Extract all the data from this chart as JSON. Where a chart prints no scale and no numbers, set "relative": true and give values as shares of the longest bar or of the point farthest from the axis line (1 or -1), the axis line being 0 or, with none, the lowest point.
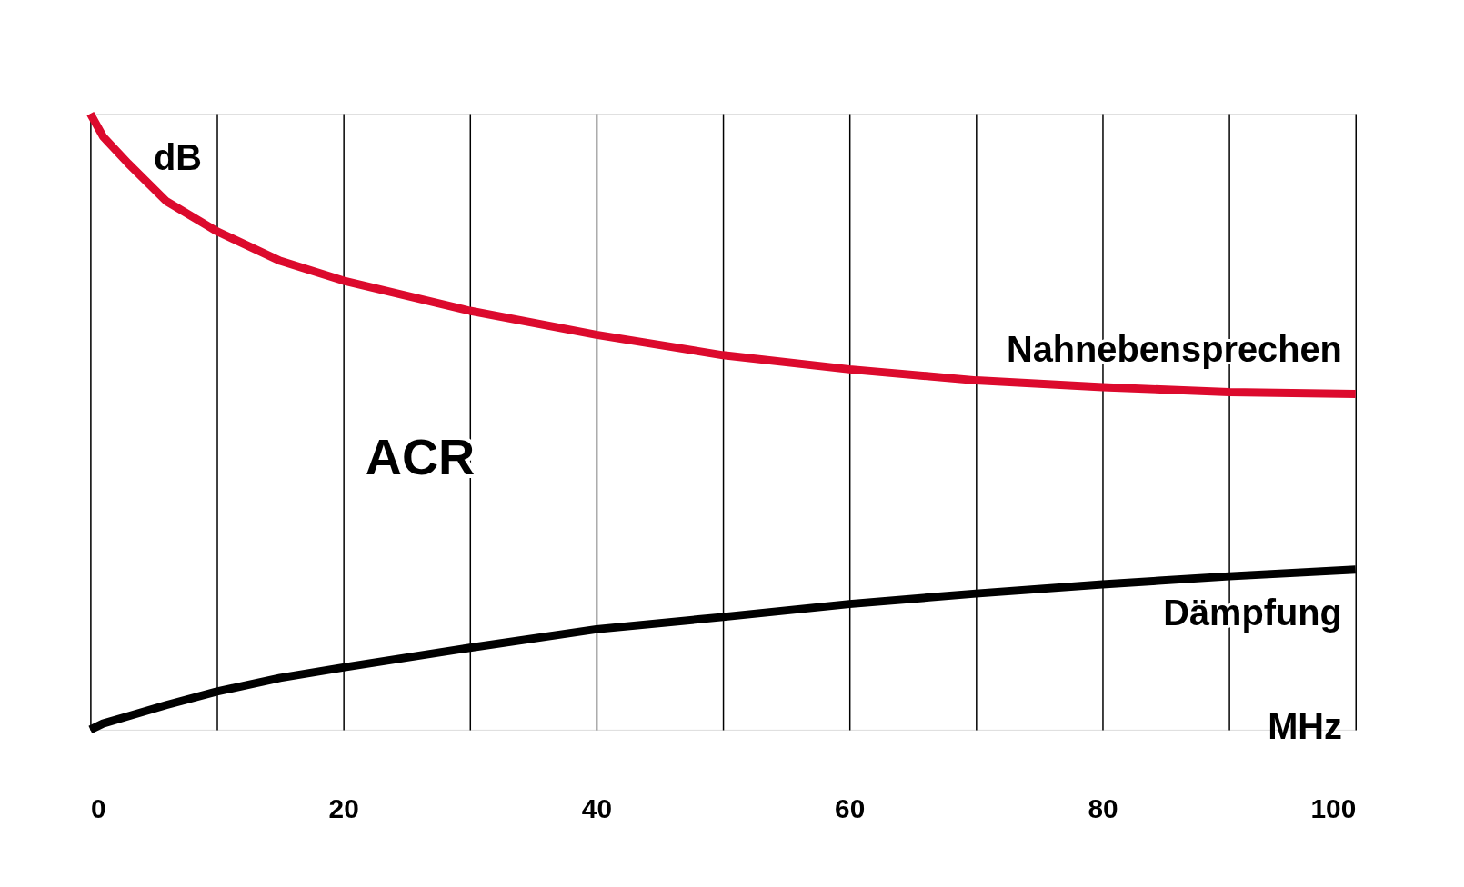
{
  "chart_data": {
    "type": "line",
    "relative": true,
    "xlabel": "MHz",
    "ylabel": "dB",
    "x": [
      0,
      1,
      3,
      6,
      10,
      15,
      20,
      30,
      40,
      50,
      60,
      70,
      80,
      90,
      100
    ],
    "xlim": [
      0,
      100
    ],
    "xticks": [
      0,
      {
        "value": 10,
        "label": null
      },
      20,
      {
        "value": 30,
        "label": null
      },
      40,
      {
        "value": 50,
        "label": null
      },
      60,
      {
        "value": 70,
        "label": null
      },
      80,
      {
        "value": 90,
        "label": null
      },
      100
    ],
    "grid": "x",
    "legend": false,
    "marker": "none",
    "line_style": "solid",
    "series": [
      {
        "name": "Nahnebensprechen",
        "color": "#dc0a2d",
        "values": [
          1.0,
          0.963,
          0.919,
          0.858,
          0.809,
          0.761,
          0.729,
          0.68,
          0.641,
          0.608,
          0.585,
          0.567,
          0.556,
          0.548,
          0.545
        ]
      },
      {
        "name": "Dämpfung",
        "color": "#000000",
        "values": [
          0.0,
          0.01,
          0.022,
          0.04,
          0.062,
          0.084,
          0.101,
          0.133,
          0.163,
          0.183,
          0.204,
          0.221,
          0.236,
          0.249,
          0.26
        ]
      }
    ],
    "annotations": [
      "ACR"
    ]
  }
}
